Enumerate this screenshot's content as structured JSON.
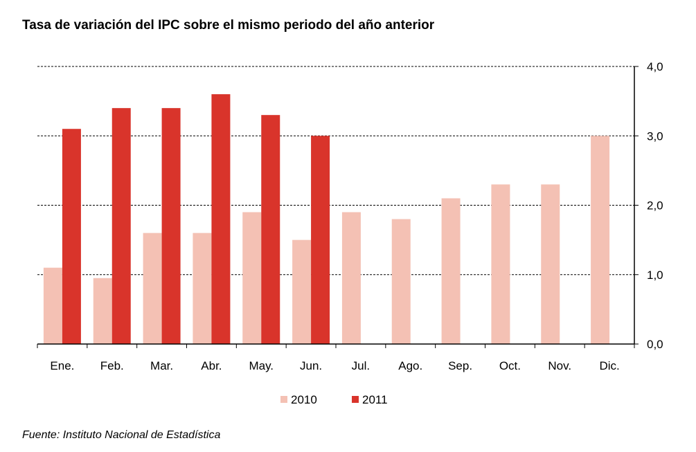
{
  "title": "Tasa de variación del IPC sobre el mismo periodo del año anterior",
  "source": "Fuente: Instituto Nacional de Estadística",
  "chart_data": {
    "type": "bar",
    "title": "Tasa de variación del IPC sobre el mismo periodo del año anterior",
    "categories": [
      "Ene.",
      "Feb.",
      "Mar.",
      "Abr.",
      "May.",
      "Jun.",
      "Jul.",
      "Ago.",
      "Sep.",
      "Oct.",
      "Nov.",
      "Dic."
    ],
    "series": [
      {
        "name": "2010",
        "color": "#f4c1b4",
        "values": [
          1.1,
          0.95,
          1.6,
          1.6,
          1.9,
          1.5,
          1.9,
          1.8,
          2.1,
          2.3,
          2.3,
          3.0
        ]
      },
      {
        "name": "2011",
        "color": "#d9342b",
        "values": [
          3.1,
          3.4,
          3.4,
          3.6,
          3.3,
          3.0,
          null,
          null,
          null,
          null,
          null,
          null
        ]
      }
    ],
    "yticks": [
      "0,0",
      "1,0",
      "2,0",
      "3,0",
      "4,0"
    ],
    "ylim": [
      0,
      4
    ],
    "grid": true,
    "y_axis_side": "right",
    "legend_position": "bottom-center"
  }
}
